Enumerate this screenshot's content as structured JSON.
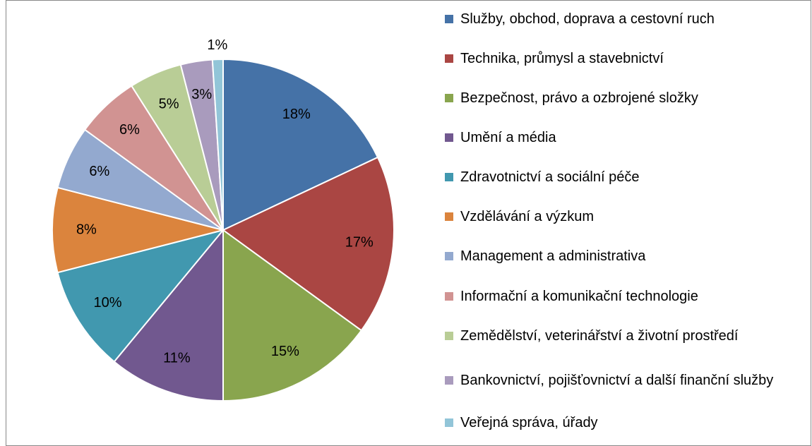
{
  "chart_data": {
    "type": "pie",
    "categories": [
      "Služby, obchod, doprava a cestovní ruch",
      "Technika, průmysl a stavebnictví",
      "Bezpečnost, právo a ozbrojené složky",
      "Umění a média",
      "Zdravotnictví a sociální péče",
      "Vzdělávání a výzkum",
      "Management a administrativa",
      "Informační a komunikační technologie",
      "Zemědělství, veterinářství a životní prostředí",
      "Bankovnictví, pojišťovnictví a další finanční služby",
      "Veřejná správa, úřady"
    ],
    "values": [
      18,
      17,
      15,
      11,
      10,
      8,
      6,
      6,
      5,
      3,
      1
    ],
    "value_labels": [
      "18%",
      "17%",
      "15%",
      "11%",
      "10%",
      "8%",
      "6%",
      "6%",
      "5%",
      "3%",
      "1%"
    ],
    "colors": [
      "#4572a7",
      "#aa4643",
      "#89a54e",
      "#71588f",
      "#4198af",
      "#db843d",
      "#93a9cf",
      "#d19392",
      "#b9cd96",
      "#a99bbd",
      "#92c5d8"
    ],
    "legend": "right"
  }
}
